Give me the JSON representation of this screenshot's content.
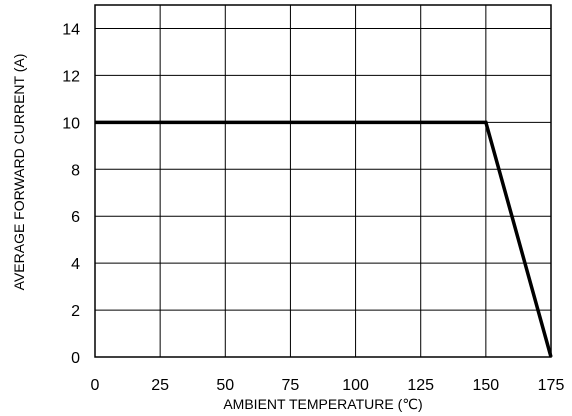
{
  "chart_data": {
    "type": "line",
    "title": "",
    "xlabel": "AMBIENT TEMPERATURE (℃)",
    "ylabel": "AVERAGE FORWARD CURRENT (A)",
    "xlim": [
      0,
      175
    ],
    "ylim": [
      0,
      15
    ],
    "x_ticks": [
      0,
      25,
      50,
      75,
      100,
      125,
      150,
      175
    ],
    "y_ticks": [
      0,
      2,
      4,
      6,
      8,
      10,
      12,
      14
    ],
    "x_tick_labels": [
      "0",
      "25",
      "50",
      "75",
      "100",
      "125",
      "150",
      "175"
    ],
    "y_tick_labels": [
      "0",
      "2",
      "4",
      "6",
      "8",
      "10",
      "12",
      "14"
    ],
    "grid": true,
    "legend": "none",
    "line_color": "#000000",
    "grid_color": "#000000",
    "series": [
      {
        "x": [
          0,
          150,
          175
        ],
        "y": [
          10,
          10,
          0
        ]
      }
    ]
  }
}
